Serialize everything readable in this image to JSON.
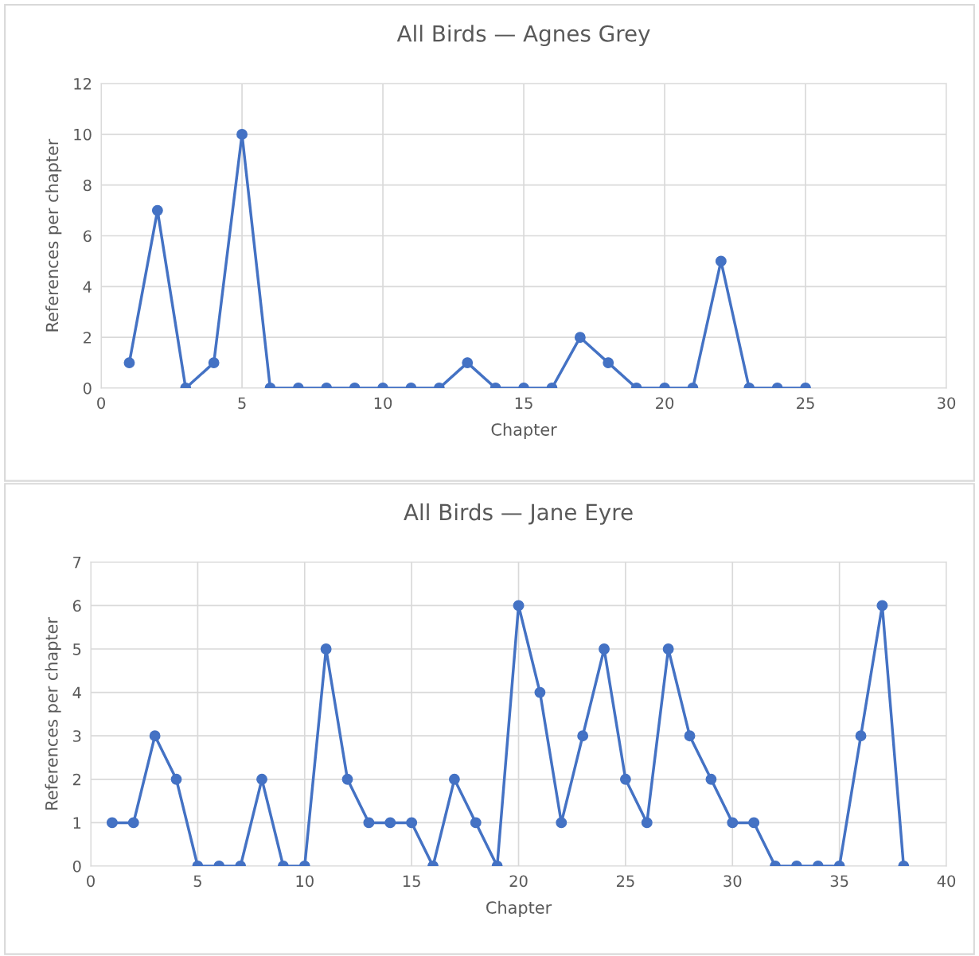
{
  "chart_data": [
    {
      "type": "line",
      "title": "All Birds — Agnes Grey",
      "xlabel": "Chapter",
      "ylabel": "References per chapter",
      "x": [
        1,
        2,
        3,
        4,
        5,
        6,
        7,
        8,
        9,
        10,
        11,
        12,
        13,
        14,
        15,
        16,
        17,
        18,
        19,
        20,
        21,
        22,
        23,
        24,
        25
      ],
      "series": [
        {
          "color": "#4472c4",
          "values": [
            1,
            7,
            0,
            1,
            10,
            0,
            0,
            0,
            0,
            0,
            0,
            0,
            1,
            0,
            0,
            0,
            2,
            1,
            0,
            0,
            0,
            5,
            0,
            0,
            0
          ]
        }
      ],
      "xlim": [
        0,
        30
      ],
      "xticks": [
        0,
        5,
        10,
        15,
        20,
        25,
        30
      ],
      "ylim": [
        0,
        12
      ],
      "yticks": [
        0,
        2,
        4,
        6,
        8,
        10,
        12
      ],
      "grid": true,
      "marker": "circle",
      "line_style": "solid"
    },
    {
      "type": "line",
      "title": "All Birds — Jane Eyre",
      "xlabel": "Chapter",
      "ylabel": "References per chapter",
      "x": [
        1,
        2,
        3,
        4,
        5,
        6,
        7,
        8,
        9,
        10,
        11,
        12,
        13,
        14,
        15,
        16,
        17,
        18,
        19,
        20,
        21,
        22,
        23,
        24,
        25,
        26,
        27,
        28,
        29,
        30,
        31,
        32,
        33,
        34,
        35,
        36,
        37,
        38
      ],
      "series": [
        {
          "color": "#4472c4",
          "values": [
            1,
            1,
            3,
            2,
            0,
            0,
            0,
            2,
            0,
            0,
            5,
            2,
            1,
            1,
            1,
            0,
            2,
            1,
            0,
            6,
            4,
            1,
            3,
            5,
            2,
            1,
            5,
            3,
            2,
            1,
            1,
            0,
            0,
            0,
            0,
            3,
            6,
            0
          ]
        }
      ],
      "xlim": [
        0,
        40
      ],
      "xticks": [
        0,
        5,
        10,
        15,
        20,
        25,
        30,
        35,
        40
      ],
      "ylim": [
        0,
        7
      ],
      "yticks": [
        0,
        1,
        2,
        3,
        4,
        5,
        6,
        7
      ],
      "grid": true,
      "marker": "circle",
      "line_style": "solid"
    }
  ]
}
